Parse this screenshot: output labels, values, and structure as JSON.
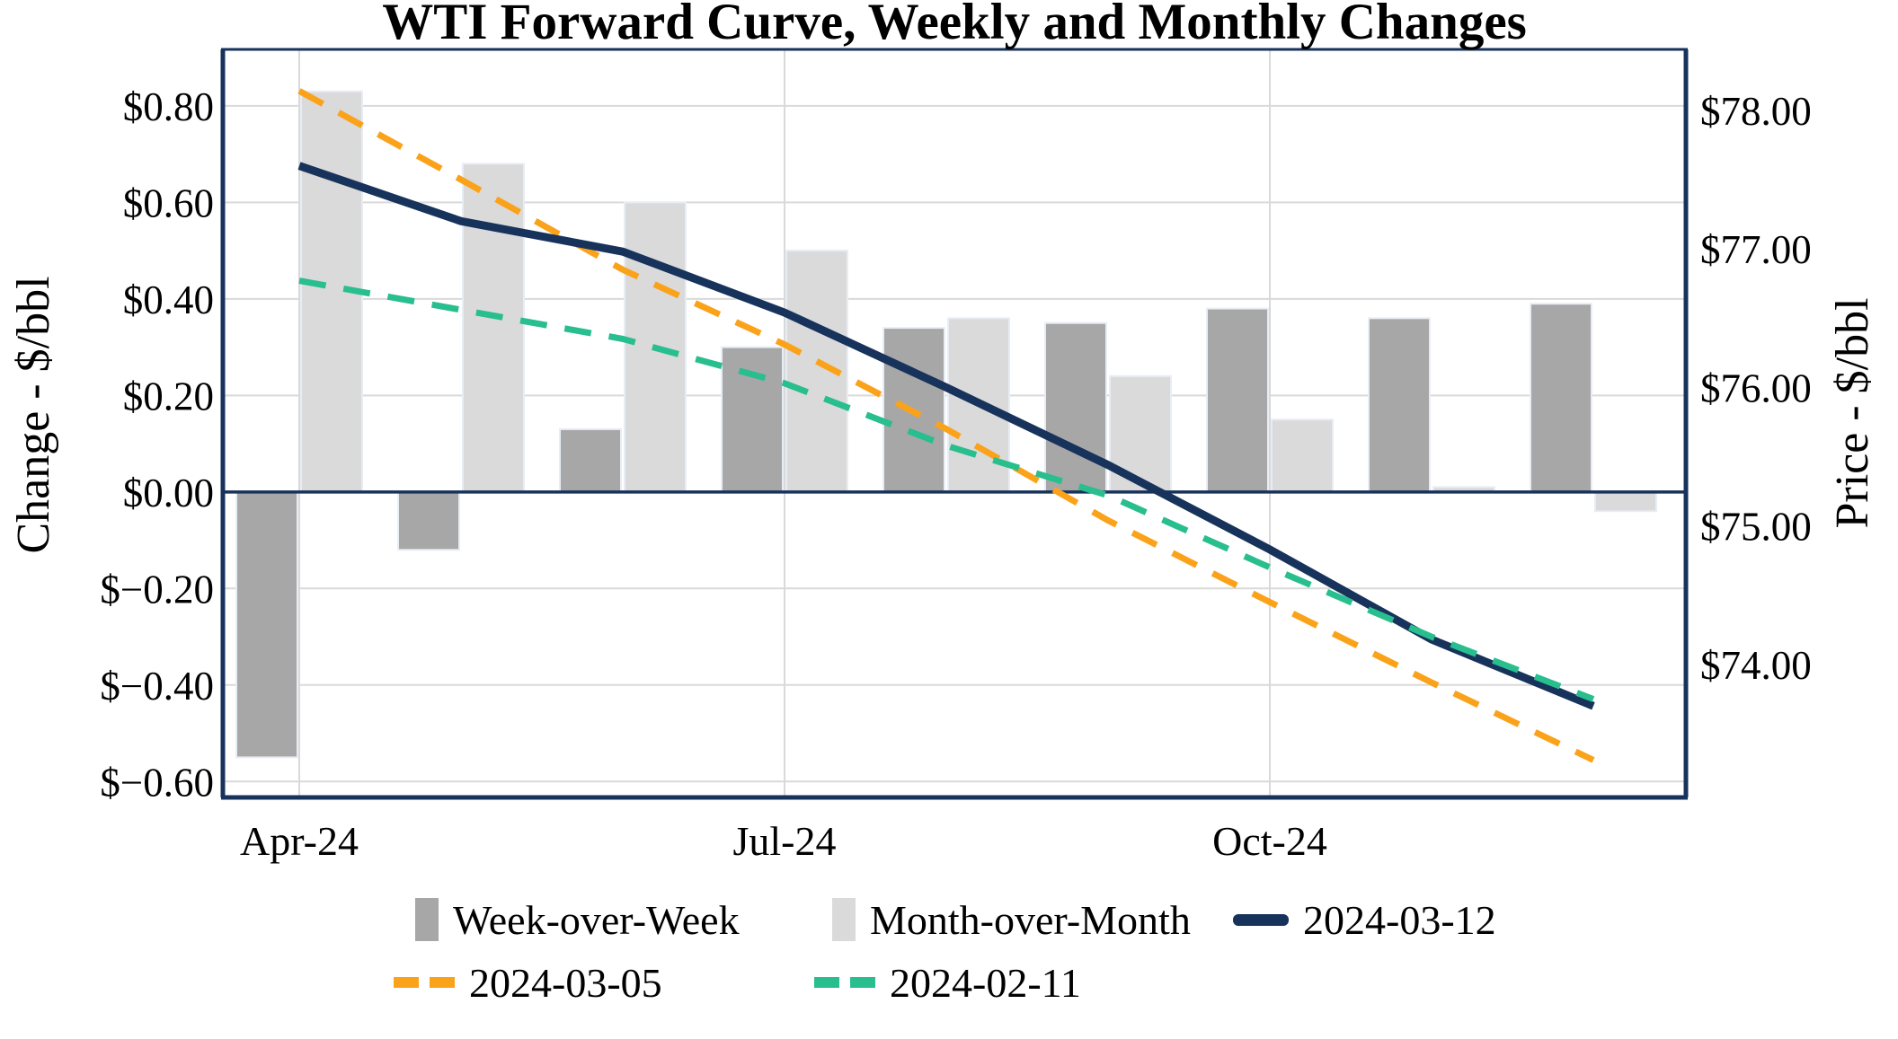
{
  "title": "WTI Forward Curve, Weekly and Monthly Changes",
  "chart_data": {
    "type": "combo-bar-line",
    "categories": [
      "Apr-24",
      "May-24",
      "Jun-24",
      "Jul-24",
      "Aug-24",
      "Sep-24",
      "Oct-24",
      "Nov-24",
      "Dec-24"
    ],
    "x_axis": {
      "shown_labels": [
        "Apr-24",
        "Jul-24",
        "Oct-24"
      ],
      "shown_label_indices": [
        0,
        3,
        6
      ]
    },
    "left_axis": {
      "label": "Change - $/bbl",
      "tick_labels": [
        "$0.80",
        "$0.60",
        "$0.40",
        "$0.20",
        "$0.00",
        "$−0.20",
        "$−0.40",
        "$−0.60"
      ],
      "tick_values": [
        0.8,
        0.6,
        0.4,
        0.2,
        0.0,
        -0.2,
        -0.4,
        -0.6
      ],
      "range": [
        -0.633,
        0.917
      ],
      "grid": true
    },
    "right_axis": {
      "label": "Price - $/bbl",
      "tick_labels": [
        "$78.00",
        "$77.00",
        "$76.00",
        "$75.00",
        "$74.00"
      ],
      "tick_values": [
        78,
        77,
        76,
        75,
        74
      ],
      "range": [
        73.04,
        78.44
      ],
      "grid": false
    },
    "bar_series": [
      {
        "name": "Week-over-Week",
        "axis": "left",
        "color": "#A7A7A7",
        "values": [
          -0.55,
          -0.12,
          0.13,
          0.3,
          0.34,
          0.35,
          0.38,
          0.36,
          0.39
        ]
      },
      {
        "name": "Month-over-Month",
        "axis": "left",
        "color": "#DADADA",
        "values": [
          0.83,
          0.68,
          0.6,
          0.5,
          0.36,
          0.24,
          0.15,
          0.01,
          -0.04
        ]
      }
    ],
    "line_series": [
      {
        "name": "2024-03-05",
        "axis": "right",
        "color": "#FBA21B",
        "style": "dashed",
        "values": [
          78.14,
          77.5,
          76.85,
          76.31,
          75.7,
          75.04,
          74.45,
          73.87,
          73.31
        ]
      },
      {
        "name": "2024-03-12",
        "axis": "right",
        "color": "#17335B",
        "style": "solid",
        "values": [
          77.6,
          77.2,
          76.98,
          76.54,
          76.0,
          75.44,
          74.83,
          74.18,
          73.7
        ]
      },
      {
        "name": "2024-02-11",
        "axis": "right",
        "color": "#28BE8E",
        "style": "dashed",
        "values": [
          76.77,
          76.56,
          76.35,
          76.03,
          75.58,
          75.22,
          74.7,
          74.2,
          73.75
        ]
      }
    ],
    "colors": {
      "grid": "#D9D9D9",
      "frame": "#17335B",
      "zero_line": "#17335B",
      "bar_outline": "#E8EDF5",
      "background": "#FFFFFF"
    }
  },
  "legend": {
    "items": [
      {
        "label": "Week-over-Week",
        "marker": "square",
        "color": "#A7A7A7"
      },
      {
        "label": "Month-over-Month",
        "marker": "square",
        "color": "#DADADA"
      },
      {
        "label": "2024-03-12",
        "marker": "line",
        "color": "#17335B"
      },
      {
        "label": "2024-03-05",
        "marker": "dash",
        "color": "#FBA21B"
      },
      {
        "label": "2024-02-11",
        "marker": "dash",
        "color": "#28BE8E"
      }
    ]
  }
}
